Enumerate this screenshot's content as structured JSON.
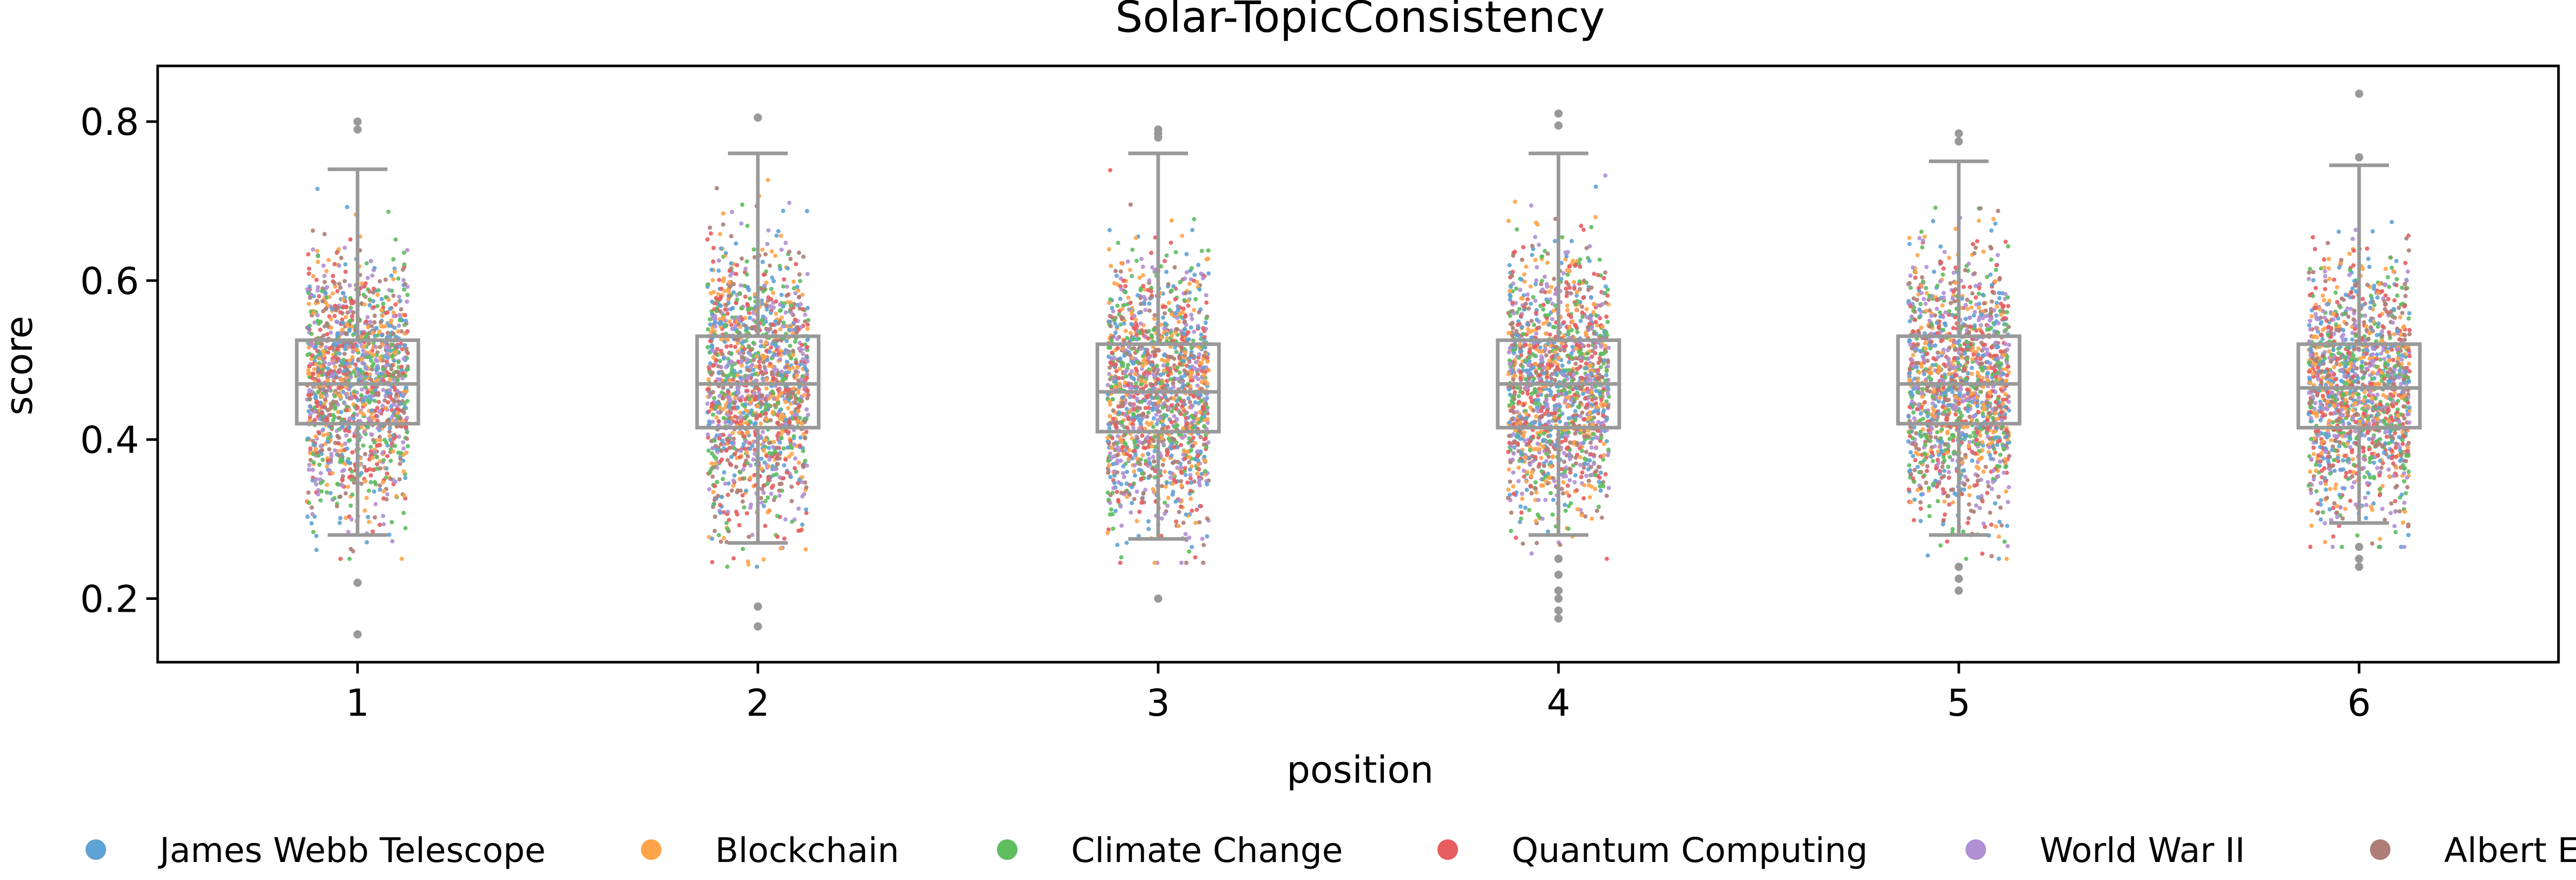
{
  "chart_data": {
    "type": "box+strip",
    "title": "Solar-TopicConsistency",
    "xlabel": "position",
    "ylabel": "score",
    "categories": [
      "1",
      "2",
      "3",
      "4",
      "5",
      "6"
    ],
    "ylim": [
      0.12,
      0.87
    ],
    "yticks": [
      "0.2",
      "0.4",
      "0.6",
      "0.8"
    ],
    "grid": false,
    "legend_position": "bottom",
    "box_color": "#999999",
    "boxes": [
      {
        "position": "1",
        "whisker_low": 0.28,
        "q1": 0.42,
        "median": 0.47,
        "q3": 0.525,
        "whisker_high": 0.74,
        "outliers": [
          0.8,
          0.79,
          0.22,
          0.155
        ]
      },
      {
        "position": "2",
        "whisker_low": 0.27,
        "q1": 0.415,
        "median": 0.47,
        "q3": 0.53,
        "whisker_high": 0.76,
        "outliers": [
          0.805,
          0.19,
          0.165
        ]
      },
      {
        "position": "3",
        "whisker_low": 0.275,
        "q1": 0.41,
        "median": 0.46,
        "q3": 0.52,
        "whisker_high": 0.76,
        "outliers": [
          0.79,
          0.785,
          0.78,
          0.2
        ]
      },
      {
        "position": "4",
        "whisker_low": 0.28,
        "q1": 0.415,
        "median": 0.47,
        "q3": 0.525,
        "whisker_high": 0.76,
        "outliers": [
          0.81,
          0.795,
          0.25,
          0.23,
          0.21,
          0.2,
          0.185,
          0.175
        ]
      },
      {
        "position": "5",
        "whisker_low": 0.28,
        "q1": 0.42,
        "median": 0.47,
        "q3": 0.53,
        "whisker_high": 0.75,
        "outliers": [
          0.785,
          0.775,
          0.24,
          0.225,
          0.21
        ]
      },
      {
        "position": "6",
        "whisker_low": 0.295,
        "q1": 0.415,
        "median": 0.465,
        "q3": 0.52,
        "whisker_high": 0.745,
        "outliers": [
          0.835,
          0.755,
          0.265,
          0.25,
          0.24
        ]
      }
    ],
    "series": [
      {
        "name": "James Webb Telescope",
        "color": "#5fa2d5"
      },
      {
        "name": "Blockchain",
        "color": "#ffa44a"
      },
      {
        "name": "Climate Change",
        "color": "#5ebd5e"
      },
      {
        "name": "Quantum Computing",
        "color": "#e75d5f"
      },
      {
        "name": "World War II",
        "color": "#b18fd3"
      },
      {
        "name": "Albert Einstein",
        "color": "#ae7d76"
      }
    ]
  }
}
